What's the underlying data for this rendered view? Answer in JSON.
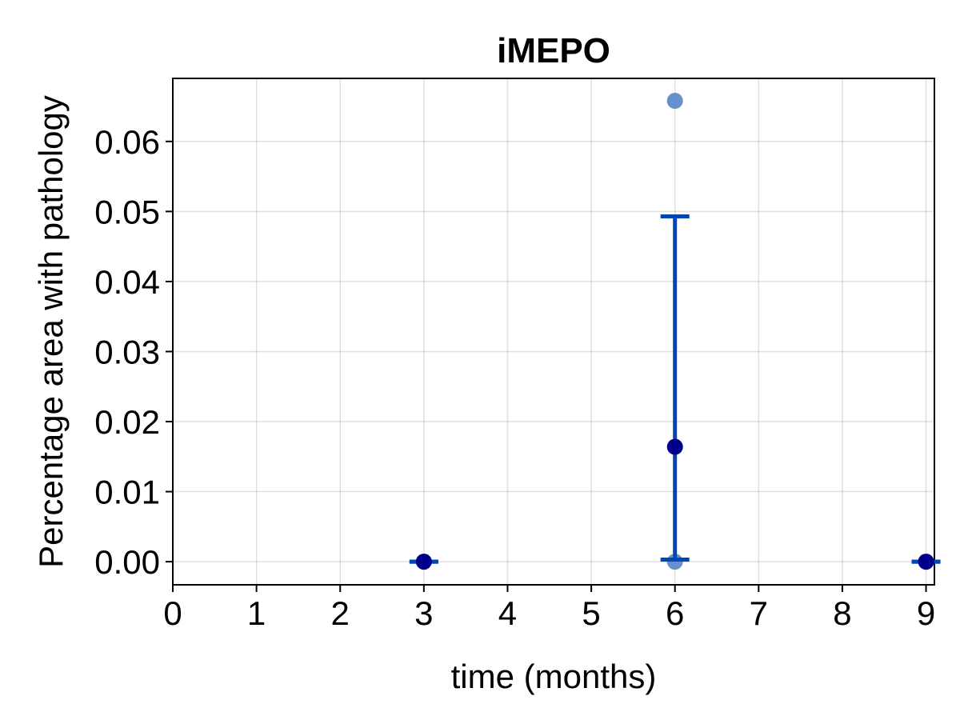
{
  "chart_data": {
    "type": "scatter",
    "title": "iMEPO",
    "xlabel": "time (months)",
    "ylabel": "Percentage area with pathology",
    "xlim": [
      0,
      9.1
    ],
    "ylim": [
      -0.0033,
      0.069
    ],
    "xticks": [
      0,
      1,
      2,
      3,
      4,
      5,
      6,
      7,
      8,
      9
    ],
    "yticks": [
      0.0,
      0.01,
      0.02,
      0.03,
      0.04,
      0.05,
      0.06
    ],
    "ytick_labels": [
      "0.00",
      "0.01",
      "0.02",
      "0.03",
      "0.04",
      "0.05",
      "0.06"
    ],
    "grid": true,
    "series": [
      {
        "role": "individual",
        "color": "#5b87c9",
        "points": [
          {
            "x": 3,
            "y": 0.0
          },
          {
            "x": 6,
            "y": 0.0658
          },
          {
            "x": 6,
            "y": 0.0
          },
          {
            "x": 9,
            "y": 0.0
          }
        ]
      },
      {
        "role": "mean",
        "color": "#00008b",
        "points": [
          {
            "x": 3,
            "y": 0.0
          },
          {
            "x": 6,
            "y": 0.0164
          },
          {
            "x": 9,
            "y": 0.0
          }
        ]
      },
      {
        "role": "errorbar",
        "color": "#0047b3",
        "bars": [
          {
            "x": 3,
            "low": 0.0,
            "high": 0.0
          },
          {
            "x": 6,
            "low": 0.0003,
            "high": 0.0493
          },
          {
            "x": 9,
            "low": 0.0,
            "high": 0.0
          }
        ]
      }
    ]
  }
}
